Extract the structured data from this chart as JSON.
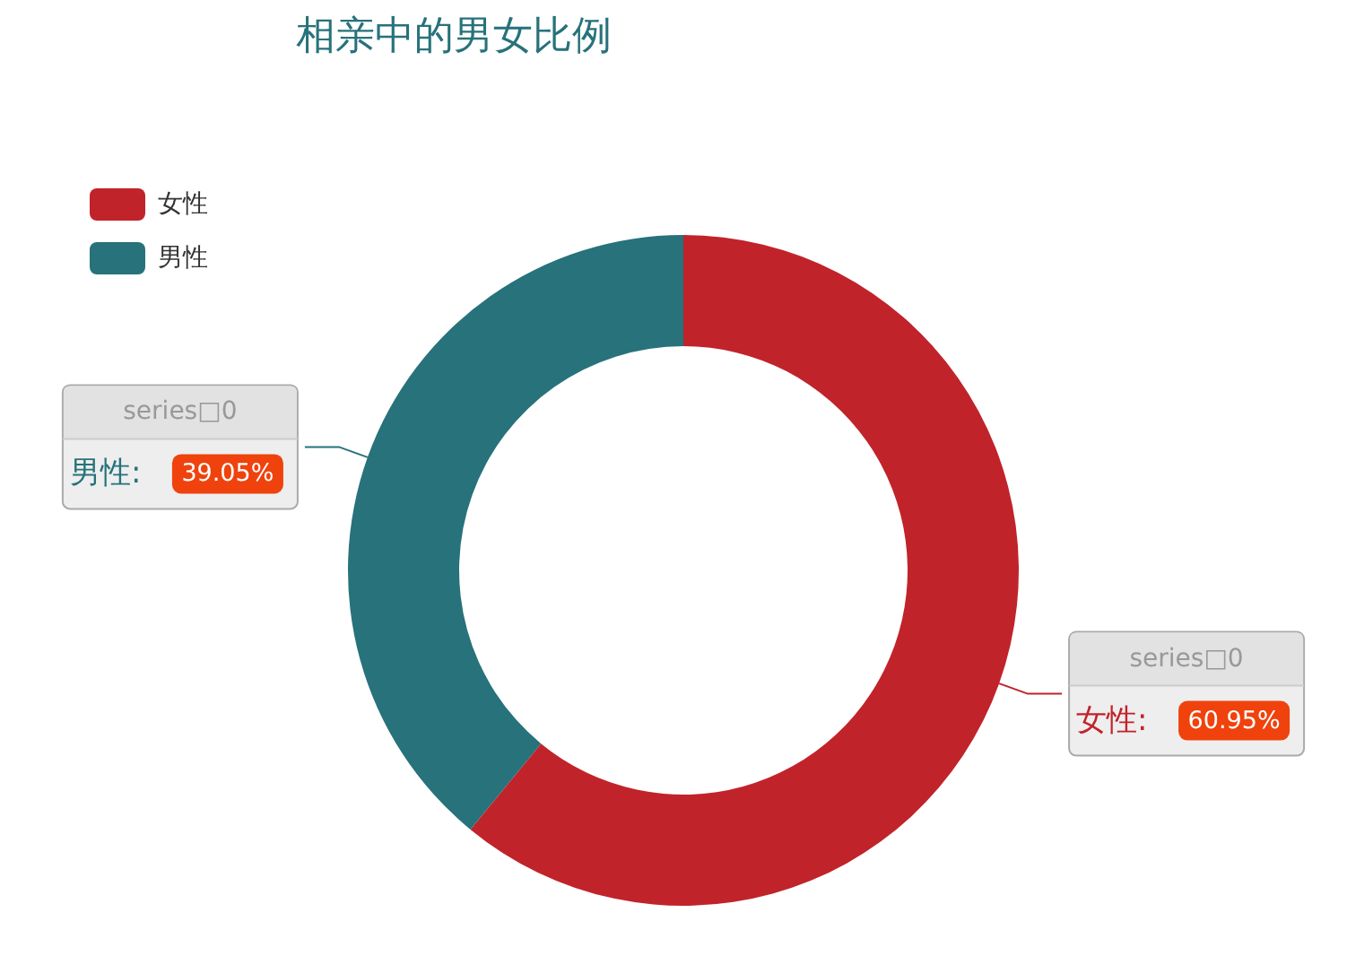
{
  "chart_data": {
    "type": "donut",
    "title": "相亲中的男女比例",
    "categories": [
      "女性",
      "男性"
    ],
    "colors": [
      "#c1232b",
      "#27727b"
    ],
    "series": [
      {
        "name": "series□0",
        "values": [
          60.95,
          39.05
        ],
        "value_labels": [
          "女性: 60.95%",
          "男性: 39.05%"
        ]
      }
    ],
    "legend": "top left"
  }
}
